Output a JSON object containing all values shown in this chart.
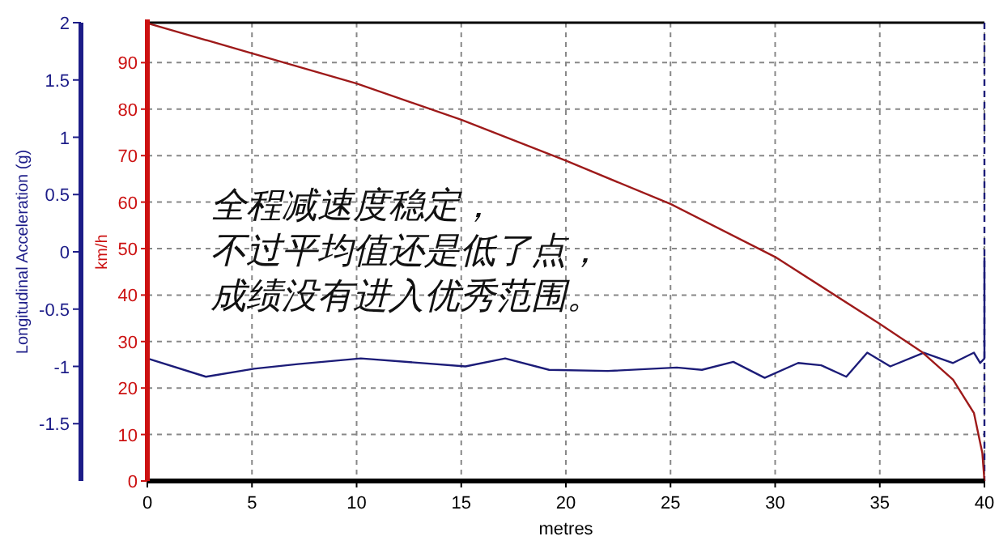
{
  "chart_data": {
    "type": "line",
    "xlabel": "metres",
    "ylabel": "Longitudinal Acceleration (g)",
    "y2label": "km/h",
    "xlim": [
      0,
      40
    ],
    "xticks": [
      0,
      5,
      10,
      15,
      20,
      25,
      30,
      35,
      40
    ],
    "ylim": [
      -2,
      2
    ],
    "yticks": [
      -1.5,
      -1,
      -0.5,
      0,
      0.5,
      1,
      1.5,
      2
    ],
    "y2lim": [
      0,
      98.6
    ],
    "y2ticks": [
      0,
      10,
      20,
      30,
      40,
      50,
      60,
      70,
      80,
      90
    ],
    "grid": true,
    "series": [
      {
        "color": "#1c1c78",
        "axis": "y",
        "x": [
          0,
          2.8,
          5.1,
          7.2,
          10.2,
          15.2,
          17.1,
          19.2,
          22.0,
          25.3,
          26.5,
          28.0,
          29.5,
          31.1,
          32.2,
          33.4,
          34.4,
          35.5,
          37.1,
          38.5,
          39.5,
          39.8,
          40,
          40
        ],
        "values": [
          -0.93,
          -1.09,
          -1.02,
          -0.98,
          -0.93,
          -1.0,
          -0.93,
          -1.03,
          -1.04,
          -1.01,
          -1.03,
          -0.96,
          -1.1,
          -0.97,
          -0.99,
          -1.09,
          -0.88,
          -1.0,
          -0.88,
          -0.97,
          -0.88,
          -0.97,
          -0.93,
          -0.05
        ]
      },
      {
        "color": "#9e1a1a",
        "axis": "y2",
        "x": [
          0,
          5,
          10,
          15,
          20,
          25,
          30,
          35,
          37,
          38.5,
          39.5,
          39.9,
          40
        ],
        "values": [
          98.5,
          92.0,
          85.5,
          77.7,
          68.9,
          59.6,
          48.2,
          33.8,
          27.8,
          21.8,
          14.6,
          6,
          0
        ]
      }
    ],
    "ref_lines": [
      {
        "axis": "x",
        "value": 40,
        "color": "#1c1c78",
        "line_style": "dashed"
      }
    ],
    "annotations": [
      "全程减速度稳定，",
      "不过平均值还是低了点，",
      "成绩没有进入优秀范围。"
    ]
  }
}
